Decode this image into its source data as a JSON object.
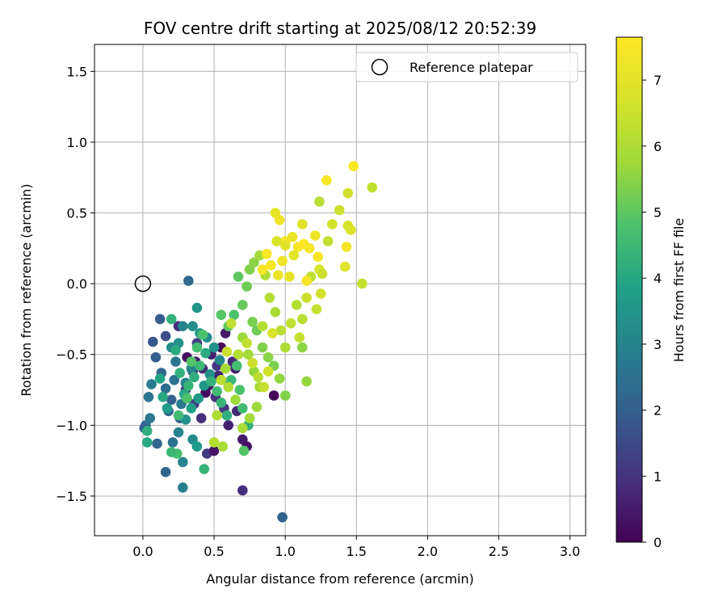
{
  "chart_data": {
    "type": "scatter",
    "title": "FOV centre drift starting at 2025/08/12 20:52:39",
    "xlabel": "Angular distance from reference (arcmin)",
    "ylabel": "Rotation from reference (arcmin)",
    "colorbar_label": "Hours from first FF file",
    "xlim": [
      -0.34,
      3.11
    ],
    "ylim": [
      -1.78,
      1.69
    ],
    "xticks": [
      0.0,
      0.5,
      1.0,
      1.5,
      2.0,
      2.5,
      3.0
    ],
    "xtick_labels": [
      "0.0",
      "0.5",
      "1.0",
      "1.5",
      "2.0",
      "2.5",
      "3.0"
    ],
    "yticks": [
      -1.5,
      -1.0,
      -0.5,
      0.0,
      0.5,
      1.0,
      1.5
    ],
    "ytick_labels": [
      "−1.5",
      "−1.0",
      "−0.5",
      "0.0",
      "0.5",
      "1.0",
      "1.5"
    ],
    "colorbar_range": [
      0,
      7.65
    ],
    "colorbar_ticks": [
      0,
      1,
      2,
      3,
      4,
      5,
      6,
      7
    ],
    "colorbar_tick_labels": [
      "0",
      "1",
      "2",
      "3",
      "4",
      "5",
      "6",
      "7"
    ],
    "colormap": "viridis",
    "grid": true,
    "legend": {
      "entries": [
        "Reference platepar"
      ],
      "placement": "top-right"
    },
    "reference_point": {
      "x": 0.0,
      "y": 0.0
    },
    "points": [
      [
        0.31,
        -0.52,
        0.3
      ],
      [
        0.37,
        -0.55,
        0.6
      ],
      [
        0.42,
        -0.6,
        0.8
      ],
      [
        0.46,
        -0.72,
        0.4
      ],
      [
        0.51,
        -0.8,
        0.9
      ],
      [
        0.53,
        -0.65,
        0.7
      ],
      [
        0.57,
        -0.88,
        1.0
      ],
      [
        0.6,
        -1.0,
        0.6
      ],
      [
        0.66,
        -0.9,
        0.8
      ],
      [
        0.7,
        -1.1,
        0.5
      ],
      [
        0.73,
        -1.15,
        0.3
      ],
      [
        0.45,
        -1.2,
        1.1
      ],
      [
        0.5,
        -1.18,
        0.4
      ],
      [
        0.41,
        -0.95,
        0.9
      ],
      [
        0.36,
        -0.85,
        1.2
      ],
      [
        0.55,
        -0.45,
        0.2
      ],
      [
        0.58,
        -0.35,
        0.5
      ],
      [
        0.63,
        -0.55,
        0.8
      ],
      [
        0.7,
        -1.46,
        0.9
      ],
      [
        0.98,
        -1.65,
        2.1
      ],
      [
        0.92,
        -0.79,
        0.1
      ],
      [
        0.25,
        -0.3,
        0.9
      ],
      [
        0.3,
        -0.75,
        1.2
      ],
      [
        0.35,
        -0.62,
        1.0
      ],
      [
        0.48,
        -0.5,
        0.6
      ],
      [
        0.52,
        -0.58,
        1.1
      ],
      [
        0.44,
        -0.77,
        0.2
      ],
      [
        0.6,
        -0.7,
        1.4
      ],
      [
        0.65,
        -0.6,
        0.6
      ],
      [
        0.38,
        -0.42,
        1.3
      ],
      [
        0.07,
        -0.41,
        1.8
      ],
      [
        0.12,
        -0.25,
        1.9
      ],
      [
        0.16,
        -0.37,
        1.6
      ],
      [
        0.09,
        -0.52,
        2.0
      ],
      [
        0.13,
        -0.63,
        2.2
      ],
      [
        0.16,
        -0.74,
        2.4
      ],
      [
        0.2,
        -0.82,
        2.1
      ],
      [
        0.22,
        -0.68,
        2.5
      ],
      [
        0.18,
        -0.9,
        2.3
      ],
      [
        0.26,
        -0.95,
        1.9
      ],
      [
        0.04,
        -0.8,
        2.6
      ],
      [
        0.02,
        -1.0,
        2.4
      ],
      [
        0.01,
        -1.02,
        2.0
      ],
      [
        0.05,
        -0.95,
        2.7
      ],
      [
        0.06,
        -0.71,
        2.8
      ],
      [
        0.1,
        -1.13,
        2.2
      ],
      [
        0.16,
        -1.33,
        2.1
      ],
      [
        0.28,
        -1.44,
        2.9
      ],
      [
        0.32,
        0.02,
        2.3
      ],
      [
        0.21,
        -1.12,
        2.5
      ],
      [
        0.25,
        -1.05,
        3.0
      ],
      [
        0.27,
        -0.85,
        2.7
      ],
      [
        0.3,
        -0.7,
        2.9
      ],
      [
        0.34,
        -0.6,
        3.1
      ],
      [
        0.23,
        -0.55,
        2.6
      ],
      [
        0.2,
        -0.45,
        3.2
      ],
      [
        0.25,
        -0.42,
        3.4
      ],
      [
        0.28,
        -0.3,
        3.0
      ],
      [
        0.35,
        -0.3,
        3.3
      ],
      [
        0.38,
        -0.17,
        3.5
      ],
      [
        0.4,
        -0.35,
        3.6
      ],
      [
        0.45,
        -0.38,
        3.2
      ],
      [
        0.5,
        -0.45,
        3.4
      ],
      [
        0.54,
        -0.54,
        3.1
      ],
      [
        0.47,
        -0.64,
        3.3
      ],
      [
        0.43,
        -0.72,
        3.5
      ],
      [
        0.39,
        -0.81,
        3.6
      ],
      [
        0.34,
        -0.88,
        3.8
      ],
      [
        0.3,
        -0.96,
        3.4
      ],
      [
        0.35,
        -1.1,
        3.2
      ],
      [
        0.38,
        -1.15,
        3.7
      ],
      [
        0.28,
        -1.26,
        3.0
      ],
      [
        0.12,
        -0.67,
        3.9
      ],
      [
        0.14,
        -0.8,
        4.0
      ],
      [
        0.17,
        -0.88,
        3.7
      ],
      [
        0.03,
        -1.12,
        4.0
      ],
      [
        0.03,
        -1.04,
        4.2
      ],
      [
        0.2,
        -0.25,
        4.3
      ],
      [
        0.23,
        -0.47,
        4.1
      ],
      [
        0.26,
        -0.63,
        4.3
      ],
      [
        0.29,
        -0.78,
        4.0
      ],
      [
        0.32,
        -0.72,
        4.4
      ],
      [
        0.36,
        -0.66,
        4.2
      ],
      [
        0.4,
        -0.58,
        4.5
      ],
      [
        0.44,
        -0.49,
        4.1
      ],
      [
        0.48,
        -0.69,
        4.3
      ],
      [
        0.52,
        -0.76,
        4.6
      ],
      [
        0.55,
        -0.84,
        4.4
      ],
      [
        0.59,
        -0.93,
        4.2
      ],
      [
        0.62,
        -0.68,
        4.5
      ],
      [
        0.66,
        -0.58,
        4.7
      ],
      [
        0.68,
        -0.75,
        4.8
      ],
      [
        0.7,
        -0.88,
        4.6
      ],
      [
        0.74,
        -1.0,
        4.3
      ],
      [
        0.71,
        -1.18,
        4.9
      ],
      [
        0.43,
        -1.31,
        4.4
      ],
      [
        0.24,
        -1.2,
        4.7
      ],
      [
        0.2,
        -1.19,
        4.5
      ],
      [
        0.25,
        -0.93,
        4.6
      ],
      [
        0.31,
        -0.81,
        4.8
      ],
      [
        0.34,
        -0.55,
        4.9
      ],
      [
        0.38,
        -0.45,
        4.7
      ],
      [
        0.42,
        -0.36,
        4.8
      ],
      [
        0.55,
        -0.22,
        4.9
      ],
      [
        0.6,
        -0.3,
        5.0
      ],
      [
        0.64,
        -0.22,
        4.8
      ],
      [
        0.67,
        0.05,
        5.0
      ],
      [
        0.7,
        -0.15,
        5.1
      ],
      [
        0.73,
        -0.02,
        5.2
      ],
      [
        0.77,
        -0.27,
        5.3
      ],
      [
        0.8,
        -0.33,
        5.2
      ],
      [
        0.84,
        -0.45,
        5.4
      ],
      [
        0.88,
        -0.52,
        5.5
      ],
      [
        0.92,
        -0.58,
        5.3
      ],
      [
        0.96,
        -0.67,
        5.6
      ],
      [
        1.0,
        -0.79,
        5.4
      ],
      [
        1.12,
        -0.45,
        5.5
      ],
      [
        1.15,
        -0.69,
        5.6
      ],
      [
        0.7,
        -0.38,
        5.7
      ],
      [
        0.74,
        -0.5,
        5.8
      ],
      [
        0.78,
        -0.62,
        5.6
      ],
      [
        0.82,
        -0.73,
        5.9
      ],
      [
        0.8,
        -0.87,
        5.7
      ],
      [
        0.75,
        -0.95,
        5.8
      ],
      [
        0.7,
        -1.02,
        5.9
      ],
      [
        0.65,
        -0.82,
        5.7
      ],
      [
        0.6,
        -0.73,
        6.0
      ],
      [
        0.58,
        -0.6,
        5.8
      ],
      [
        0.56,
        -1.15,
        5.9
      ],
      [
        0.75,
        0.1,
        5.4
      ],
      [
        0.78,
        0.15,
        5.5
      ],
      [
        0.82,
        0.2,
        5.8
      ],
      [
        0.86,
        0.06,
        6.0
      ],
      [
        0.89,
        -0.1,
        6.1
      ],
      [
        0.93,
        -0.2,
        5.9
      ],
      [
        0.97,
        -0.33,
        6.2
      ],
      [
        1.0,
        -0.45,
        6.0
      ],
      [
        1.04,
        -0.28,
        6.3
      ],
      [
        1.08,
        -0.15,
        6.1
      ],
      [
        1.1,
        -0.38,
        6.4
      ],
      [
        1.12,
        -0.25,
        6.2
      ],
      [
        1.15,
        -0.1,
        6.5
      ],
      [
        1.18,
        0.05,
        6.3
      ],
      [
        1.22,
        -0.18,
        6.4
      ],
      [
        1.25,
        -0.07,
        6.6
      ],
      [
        1.24,
        0.1,
        6.7
      ],
      [
        1.26,
        0.07,
        6.5
      ],
      [
        1.3,
        0.3,
        6.4
      ],
      [
        1.33,
        0.42,
        6.6
      ],
      [
        1.38,
        0.52,
        6.5
      ],
      [
        1.44,
        0.41,
        6.7
      ],
      [
        1.46,
        0.38,
        6.8
      ],
      [
        1.44,
        0.64,
        6.6
      ],
      [
        1.54,
        0.0,
        6.4
      ],
      [
        1.61,
        0.68,
        6.3
      ],
      [
        1.42,
        0.12,
        6.9
      ],
      [
        1.43,
        0.26,
        7.4
      ],
      [
        1.24,
        0.58,
        6.2
      ],
      [
        0.93,
        0.5,
        7.1
      ],
      [
        0.96,
        0.45,
        7.3
      ],
      [
        1.0,
        0.3,
        7.5
      ],
      [
        1.05,
        0.33,
        7.2
      ],
      [
        1.09,
        0.26,
        7.4
      ],
      [
        1.13,
        0.28,
        7.6
      ],
      [
        1.17,
        0.25,
        7.5
      ],
      [
        1.21,
        0.34,
        7.3
      ],
      [
        1.23,
        0.19,
        7.6
      ],
      [
        1.29,
        0.73,
        7.5
      ],
      [
        1.48,
        0.83,
        7.6
      ],
      [
        1.12,
        0.42,
        6.9
      ],
      [
        0.95,
        0.06,
        7.2
      ],
      [
        0.9,
        0.13,
        7.4
      ],
      [
        0.87,
        0.21,
        7.6
      ],
      [
        0.84,
        0.1,
        7.5
      ],
      [
        0.98,
        0.16,
        7.3
      ],
      [
        1.03,
        0.05,
        7.1
      ],
      [
        1.06,
        0.2,
        7.0
      ],
      [
        1.0,
        0.27,
        6.9
      ],
      [
        0.94,
        0.3,
        6.8
      ],
      [
        1.15,
        0.02,
        7.4
      ],
      [
        0.67,
        -0.5,
        6.1
      ],
      [
        0.73,
        -0.42,
        6.3
      ],
      [
        0.77,
        -0.56,
        6.5
      ],
      [
        0.81,
        -0.66,
        6.2
      ],
      [
        0.85,
        -0.73,
        6.4
      ],
      [
        0.88,
        -0.62,
        6.6
      ],
      [
        0.91,
        -0.35,
        6.8
      ],
      [
        0.84,
        -0.3,
        6.1
      ],
      [
        0.62,
        -0.28,
        6.3
      ],
      [
        0.59,
        -0.48,
        6.5
      ],
      [
        0.55,
        -0.68,
        6.2
      ],
      [
        0.52,
        -0.93,
        6.0
      ],
      [
        0.5,
        -1.12,
        6.1
      ]
    ]
  }
}
